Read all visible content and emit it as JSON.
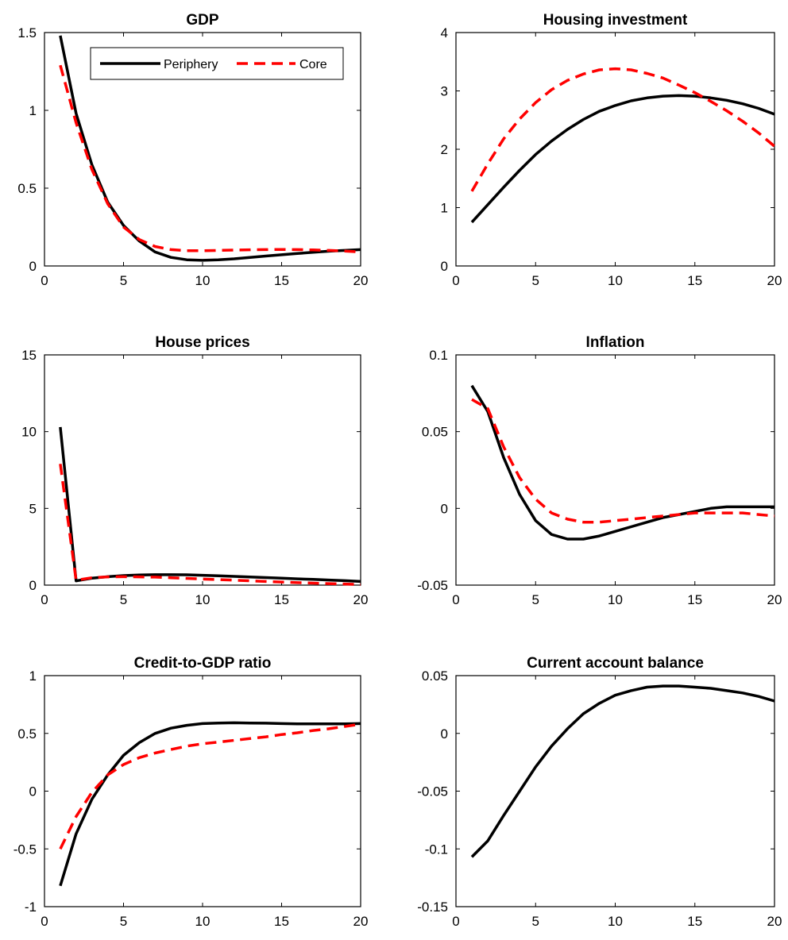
{
  "colors": {
    "periphery": "#000000",
    "core": "#ff0000"
  },
  "legend": {
    "entries": [
      "Periphery",
      "Core"
    ],
    "placement": "top-right",
    "panel": 0
  },
  "chart_data": [
    {
      "type": "line",
      "title": "GDP",
      "xlabel": "",
      "ylabel": "",
      "xlim": [
        0,
        20
      ],
      "ylim": [
        0,
        1.5
      ],
      "xticks": [
        "0",
        "5",
        "10",
        "15",
        "20"
      ],
      "yticks": [
        "0",
        "0.5",
        "1",
        "1.5"
      ],
      "grid": false,
      "x": [
        1,
        2,
        3,
        4,
        5,
        6,
        7,
        8,
        9,
        10,
        11,
        12,
        13,
        14,
        15,
        16,
        17,
        18,
        19,
        20
      ],
      "series": [
        {
          "name": "Periphery",
          "style": "solid",
          "values": [
            1.48,
            0.98,
            0.65,
            0.41,
            0.26,
            0.16,
            0.09,
            0.055,
            0.04,
            0.036,
            0.04,
            0.046,
            0.055,
            0.064,
            0.072,
            0.08,
            0.088,
            0.095,
            0.1,
            0.105
          ]
        },
        {
          "name": "Core",
          "style": "dashed",
          "values": [
            1.29,
            0.92,
            0.62,
            0.4,
            0.25,
            0.17,
            0.125,
            0.105,
            0.098,
            0.098,
            0.1,
            0.102,
            0.104,
            0.105,
            0.106,
            0.105,
            0.103,
            0.1,
            0.096,
            0.09
          ]
        }
      ]
    },
    {
      "type": "line",
      "title": "Housing investment",
      "xlabel": "",
      "ylabel": "",
      "xlim": [
        0,
        20
      ],
      "ylim": [
        0,
        4
      ],
      "xticks": [
        "0",
        "5",
        "10",
        "15",
        "20"
      ],
      "yticks": [
        "0",
        "1",
        "2",
        "3",
        "4"
      ],
      "grid": false,
      "x": [
        1,
        2,
        3,
        4,
        5,
        6,
        7,
        8,
        9,
        10,
        11,
        12,
        13,
        14,
        15,
        16,
        17,
        18,
        19,
        20
      ],
      "series": [
        {
          "name": "Periphery",
          "style": "solid",
          "values": [
            0.75,
            1.05,
            1.35,
            1.64,
            1.91,
            2.14,
            2.34,
            2.51,
            2.65,
            2.75,
            2.83,
            2.88,
            2.91,
            2.92,
            2.91,
            2.88,
            2.84,
            2.78,
            2.7,
            2.6
          ]
        },
        {
          "name": "Core",
          "style": "dashed",
          "values": [
            1.28,
            1.75,
            2.18,
            2.52,
            2.8,
            3.02,
            3.18,
            3.29,
            3.36,
            3.38,
            3.36,
            3.3,
            3.22,
            3.1,
            2.97,
            2.82,
            2.66,
            2.48,
            2.28,
            2.05
          ]
        }
      ]
    },
    {
      "type": "line",
      "title": "House prices",
      "xlabel": "",
      "ylabel": "",
      "xlim": [
        0,
        20
      ],
      "ylim": [
        0,
        15
      ],
      "xticks": [
        "0",
        "5",
        "10",
        "15",
        "20"
      ],
      "yticks": [
        "0",
        "5",
        "10",
        "15"
      ],
      "grid": false,
      "x": [
        1,
        2,
        3,
        4,
        5,
        6,
        7,
        8,
        9,
        10,
        11,
        12,
        13,
        14,
        15,
        16,
        17,
        18,
        19,
        20
      ],
      "series": [
        {
          "name": "Periphery",
          "style": "solid",
          "values": [
            10.3,
            0.28,
            0.45,
            0.55,
            0.62,
            0.66,
            0.68,
            0.68,
            0.67,
            0.64,
            0.61,
            0.57,
            0.53,
            0.49,
            0.45,
            0.41,
            0.37,
            0.33,
            0.29,
            0.24
          ]
        },
        {
          "name": "Core",
          "style": "dashed",
          "values": [
            7.9,
            0.32,
            0.48,
            0.54,
            0.55,
            0.54,
            0.52,
            0.48,
            0.44,
            0.4,
            0.36,
            0.32,
            0.28,
            0.24,
            0.2,
            0.16,
            0.13,
            0.1,
            0.07,
            0.03
          ]
        }
      ]
    },
    {
      "type": "line",
      "title": "Inflation",
      "xlabel": "",
      "ylabel": "",
      "xlim": [
        0,
        20
      ],
      "ylim": [
        -0.05,
        0.1
      ],
      "xticks": [
        "0",
        "5",
        "10",
        "15",
        "20"
      ],
      "yticks": [
        "-0.05",
        "0",
        "0.05",
        "0.1"
      ],
      "grid": false,
      "x": [
        1,
        2,
        3,
        4,
        5,
        6,
        7,
        8,
        9,
        10,
        11,
        12,
        13,
        14,
        15,
        16,
        17,
        18,
        19,
        20
      ],
      "series": [
        {
          "name": "Periphery",
          "style": "solid",
          "values": [
            0.08,
            0.063,
            0.033,
            0.009,
            -0.008,
            -0.017,
            -0.02,
            -0.02,
            -0.018,
            -0.015,
            -0.012,
            -0.009,
            -0.006,
            -0.004,
            -0.002,
            0.0,
            0.001,
            0.001,
            0.001,
            0.001
          ]
        },
        {
          "name": "Core",
          "style": "dashed",
          "values": [
            0.071,
            0.065,
            0.04,
            0.02,
            0.006,
            -0.003,
            -0.007,
            -0.009,
            -0.009,
            -0.008,
            -0.007,
            -0.006,
            -0.005,
            -0.004,
            -0.003,
            -0.003,
            -0.003,
            -0.003,
            -0.004,
            -0.005
          ]
        }
      ]
    },
    {
      "type": "line",
      "title": "Credit-to-GDP ratio",
      "xlabel": "",
      "ylabel": "",
      "xlim": [
        0,
        20
      ],
      "ylim": [
        -1,
        1
      ],
      "xticks": [
        "0",
        "5",
        "10",
        "15",
        "20"
      ],
      "yticks": [
        "-1",
        "-0.5",
        "0",
        "0.5",
        "1"
      ],
      "grid": false,
      "x": [
        1,
        2,
        3,
        4,
        5,
        6,
        7,
        8,
        9,
        10,
        11,
        12,
        13,
        14,
        15,
        16,
        17,
        18,
        19,
        20
      ],
      "series": [
        {
          "name": "Periphery",
          "style": "solid",
          "values": [
            -0.82,
            -0.37,
            -0.07,
            0.14,
            0.31,
            0.42,
            0.5,
            0.545,
            0.57,
            0.585,
            0.59,
            0.592,
            0.59,
            0.588,
            0.585,
            0.583,
            0.582,
            0.582,
            0.583,
            0.585
          ]
        },
        {
          "name": "Core",
          "style": "dashed",
          "values": [
            -0.5,
            -0.22,
            -0.01,
            0.14,
            0.23,
            0.29,
            0.33,
            0.36,
            0.39,
            0.41,
            0.425,
            0.44,
            0.455,
            0.47,
            0.49,
            0.505,
            0.525,
            0.54,
            0.56,
            0.58
          ]
        }
      ]
    },
    {
      "type": "line",
      "title": "Current account balance",
      "xlabel": "",
      "ylabel": "",
      "xlim": [
        0,
        20
      ],
      "ylim": [
        -0.15,
        0.05
      ],
      "xticks": [
        "0",
        "5",
        "10",
        "15",
        "20"
      ],
      "yticks": [
        "-0.15",
        "-0.1",
        "-0.05",
        "0",
        "0.05"
      ],
      "grid": false,
      "x": [
        1,
        2,
        3,
        4,
        5,
        6,
        7,
        8,
        9,
        10,
        11,
        12,
        13,
        14,
        15,
        16,
        17,
        18,
        19,
        20
      ],
      "series": [
        {
          "name": "Periphery",
          "style": "solid",
          "values": [
            -0.107,
            -0.093,
            -0.071,
            -0.05,
            -0.029,
            -0.011,
            0.004,
            0.017,
            0.026,
            0.033,
            0.037,
            0.04,
            0.041,
            0.041,
            0.04,
            0.039,
            0.037,
            0.035,
            0.032,
            0.028
          ]
        }
      ]
    }
  ]
}
